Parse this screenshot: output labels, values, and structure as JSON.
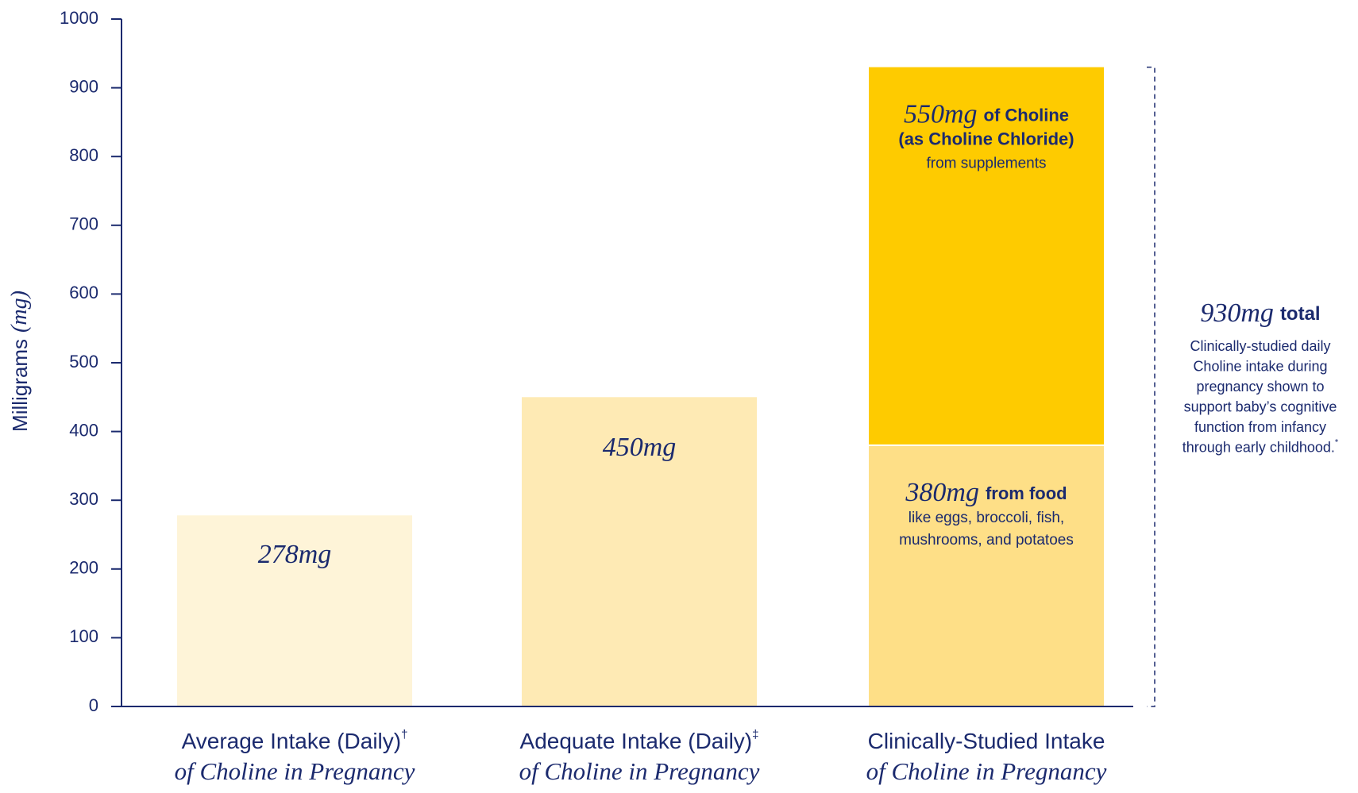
{
  "chart_data": {
    "type": "stacked-bar",
    "ylabel": "Milligrams",
    "ylabel_unit": "(mg)",
    "categories": [
      "Average Intake (Daily)",
      "Adequate Intake (Daily)",
      "Clinically-Studied Intake"
    ],
    "category_marks": [
      "†",
      "‡",
      null
    ],
    "category_subtitles": [
      "of Choline in Pregnancy",
      "of Choline in Pregnancy",
      "of Choline in Pregnancy"
    ],
    "ylim": [
      0,
      1000
    ],
    "yticks": [
      0,
      100,
      200,
      300,
      400,
      500,
      600,
      700,
      800,
      900,
      1000
    ],
    "grid": false,
    "series": [
      {
        "colors": [
          "#fef4d8",
          "#feeab4",
          "#fedf87"
        ],
        "values": [
          278,
          450,
          380
        ],
        "value_labels": [
          "278mg",
          "450mg",
          "380mg"
        ],
        "label_suffix": [
          null,
          null,
          "from food"
        ],
        "bold_lines": [
          null,
          null,
          null
        ],
        "notes": [
          null,
          null,
          [
            "like eggs, broccoli, fish,",
            "mushrooms, and potatoes"
          ]
        ]
      },
      {
        "color": "#fecb00",
        "values": [
          null,
          null,
          550
        ],
        "value_labels": [
          null,
          null,
          "550mg"
        ],
        "label_suffix": [
          null,
          null,
          "of Choline"
        ],
        "bold_lines": [
          null,
          null,
          [
            "(as Choline Chloride)"
          ]
        ],
        "notes": [
          null,
          null,
          [
            "from supplements"
          ]
        ]
      }
    ],
    "total": {
      "value": 930,
      "value_label": "930mg",
      "label": "total",
      "notes": [
        "Clinically-studied daily",
        "Choline intake during",
        "pregnancy shown to",
        "support baby’s cognitive",
        "function from infancy",
        "through early childhood."
      ],
      "note_mark": "*"
    },
    "text_color": "#1b2a6e"
  }
}
